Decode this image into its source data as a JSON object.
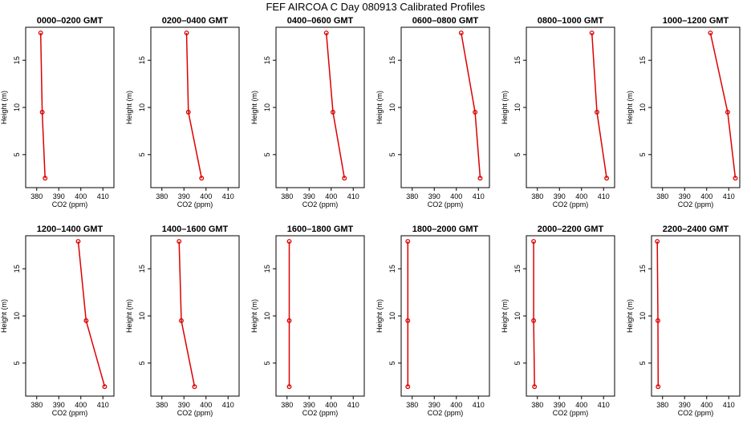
{
  "figure": {
    "title": "FEF  AIRCOA C  Day 080913  Calibrated Profiles"
  },
  "chart_data": [
    {
      "type": "line",
      "title": "0000–0200 GMT",
      "xlabel": "CO2 (ppm)",
      "ylabel": "Height (m)",
      "xlim": [
        375,
        415
      ],
      "ylim": [
        1.5,
        18.5
      ],
      "xticks": [
        380,
        390,
        400,
        410
      ],
      "yticks": [
        5,
        10,
        15
      ],
      "x": [
        381.8,
        382.5,
        383.8
      ],
      "y": [
        17.9,
        9.5,
        2.5
      ],
      "color": "#dd0000"
    },
    {
      "type": "line",
      "title": "0200–0400 GMT",
      "xlabel": "CO2 (ppm)",
      "ylabel": "Height (m)",
      "xlim": [
        375,
        415
      ],
      "ylim": [
        1.5,
        18.5
      ],
      "xticks": [
        380,
        390,
        400,
        410
      ],
      "yticks": [
        5,
        10,
        15
      ],
      "x": [
        391.2,
        392.0,
        398.0
      ],
      "y": [
        17.9,
        9.5,
        2.5
      ],
      "color": "#dd0000"
    },
    {
      "type": "line",
      "title": "0400–0600 GMT",
      "xlabel": "CO2 (ppm)",
      "ylabel": "Height (m)",
      "xlim": [
        375,
        415
      ],
      "ylim": [
        1.5,
        18.5
      ],
      "xticks": [
        380,
        390,
        400,
        410
      ],
      "yticks": [
        5,
        10,
        15
      ],
      "x": [
        397.8,
        400.8,
        406.0
      ],
      "y": [
        17.9,
        9.5,
        2.5
      ],
      "color": "#dd0000"
    },
    {
      "type": "line",
      "title": "0600–0800 GMT",
      "xlabel": "CO2 (ppm)",
      "ylabel": "Height (m)",
      "xlim": [
        375,
        415
      ],
      "ylim": [
        1.5,
        18.5
      ],
      "xticks": [
        380,
        390,
        400,
        410
      ],
      "yticks": [
        5,
        10,
        15
      ],
      "x": [
        402.2,
        408.5,
        410.8
      ],
      "y": [
        17.9,
        9.5,
        2.5
      ],
      "color": "#dd0000"
    },
    {
      "type": "line",
      "title": "0800–1000 GMT",
      "xlabel": "CO2 (ppm)",
      "ylabel": "Height (m)",
      "xlim": [
        375,
        415
      ],
      "ylim": [
        1.5,
        18.5
      ],
      "xticks": [
        380,
        390,
        400,
        410
      ],
      "yticks": [
        5,
        10,
        15
      ],
      "x": [
        404.7,
        407.0,
        411.4
      ],
      "y": [
        17.9,
        9.5,
        2.5
      ],
      "color": "#dd0000"
    },
    {
      "type": "line",
      "title": "1000–1200 GMT",
      "xlabel": "CO2 (ppm)",
      "ylabel": "Height (m)",
      "xlim": [
        375,
        415
      ],
      "ylim": [
        1.5,
        18.5
      ],
      "xticks": [
        380,
        390,
        400,
        410
      ],
      "yticks": [
        5,
        10,
        15
      ],
      "x": [
        401.7,
        409.5,
        413.0
      ],
      "y": [
        17.9,
        9.5,
        2.5
      ],
      "color": "#dd0000"
    },
    {
      "type": "line",
      "title": "1200–1400 GMT",
      "xlabel": "CO2 (ppm)",
      "ylabel": "Height (m)",
      "xlim": [
        375,
        415
      ],
      "ylim": [
        1.5,
        18.5
      ],
      "xticks": [
        380,
        390,
        400,
        410
      ],
      "yticks": [
        5,
        10,
        15
      ],
      "x": [
        398.8,
        402.4,
        410.8
      ],
      "y": [
        17.9,
        9.5,
        2.5
      ],
      "color": "#dd0000"
    },
    {
      "type": "line",
      "title": "1400–1600 GMT",
      "xlabel": "CO2 (ppm)",
      "ylabel": "Height (m)",
      "xlim": [
        375,
        415
      ],
      "ylim": [
        1.5,
        18.5
      ],
      "xticks": [
        380,
        390,
        400,
        410
      ],
      "yticks": [
        5,
        10,
        15
      ],
      "x": [
        387.8,
        388.8,
        394.8
      ],
      "y": [
        17.9,
        9.5,
        2.5
      ],
      "color": "#dd0000"
    },
    {
      "type": "line",
      "title": "1600–1800 GMT",
      "xlabel": "CO2 (ppm)",
      "ylabel": "Height (m)",
      "xlim": [
        375,
        415
      ],
      "ylim": [
        1.5,
        18.5
      ],
      "xticks": [
        380,
        390,
        400,
        410
      ],
      "yticks": [
        5,
        10,
        15
      ],
      "x": [
        381.0,
        381.0,
        381.0
      ],
      "y": [
        17.9,
        9.5,
        2.5
      ],
      "color": "#dd0000"
    },
    {
      "type": "line",
      "title": "1800–2000 GMT",
      "xlabel": "CO2 (ppm)",
      "ylabel": "Height (m)",
      "xlim": [
        375,
        415
      ],
      "ylim": [
        1.5,
        18.5
      ],
      "xticks": [
        380,
        390,
        400,
        410
      ],
      "yticks": [
        5,
        10,
        15
      ],
      "x": [
        378.0,
        378.0,
        378.0
      ],
      "y": [
        17.9,
        9.5,
        2.5
      ],
      "color": "#dd0000"
    },
    {
      "type": "line",
      "title": "2000–2200 GMT",
      "xlabel": "CO2 (ppm)",
      "ylabel": "Height (m)",
      "xlim": [
        375,
        415
      ],
      "ylim": [
        1.5,
        18.5
      ],
      "xticks": [
        380,
        390,
        400,
        410
      ],
      "yticks": [
        5,
        10,
        15
      ],
      "x": [
        378.3,
        378.3,
        378.7
      ],
      "y": [
        17.9,
        9.5,
        2.5
      ],
      "color": "#dd0000"
    },
    {
      "type": "line",
      "title": "2200–2400 GMT",
      "xlabel": "CO2 (ppm)",
      "ylabel": "Height (m)",
      "xlim": [
        375,
        415
      ],
      "ylim": [
        1.5,
        18.5
      ],
      "xticks": [
        380,
        390,
        400,
        410
      ],
      "yticks": [
        5,
        10,
        15
      ],
      "x": [
        377.6,
        377.9,
        378.0
      ],
      "y": [
        17.9,
        9.5,
        2.5
      ],
      "color": "#dd0000"
    }
  ]
}
